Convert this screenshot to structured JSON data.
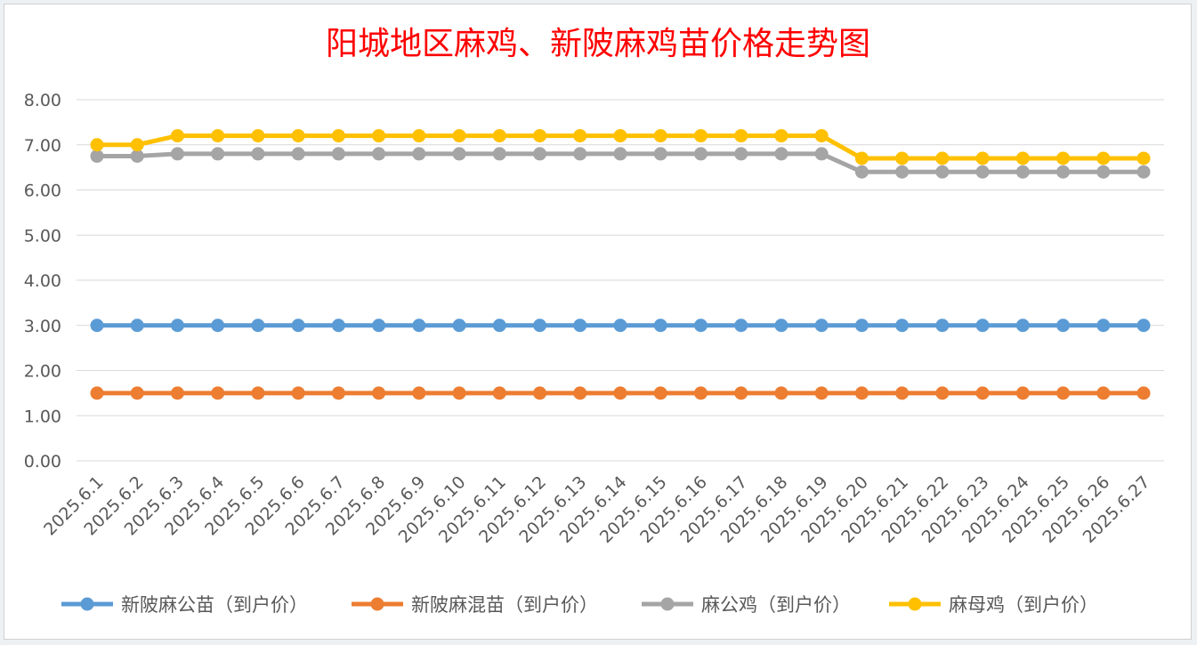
{
  "chart_data": {
    "type": "line",
    "title": "阳城地区麻鸡、新陂麻鸡苗价格走势图",
    "categories": [
      "2025.6.1",
      "2025.6.2",
      "2025.6.3",
      "2025.6.4",
      "2025.6.5",
      "2025.6.6",
      "2025.6.7",
      "2025.6.8",
      "2025.6.9",
      "2025.6.10",
      "2025.6.11",
      "2025.6.12",
      "2025.6.13",
      "2025.6.14",
      "2025.6.15",
      "2025.6.16",
      "2025.6.17",
      "2025.6.18",
      "2025.6.19",
      "2025.6.20",
      "2025.6.21",
      "2025.6.22",
      "2025.6.23",
      "2025.6.24",
      "2025.6.25",
      "2025.6.26",
      "2025.6.27"
    ],
    "ylim": [
      0,
      8
    ],
    "yticks": [
      "0.00",
      "1.00",
      "2.00",
      "3.00",
      "4.00",
      "5.00",
      "6.00",
      "7.00",
      "8.00"
    ],
    "grid": true,
    "legend": "bottom",
    "series": [
      {
        "name": "新陂麻公苗（到户价）",
        "color": "#5b9bd5",
        "values": [
          3.0,
          3.0,
          3.0,
          3.0,
          3.0,
          3.0,
          3.0,
          3.0,
          3.0,
          3.0,
          3.0,
          3.0,
          3.0,
          3.0,
          3.0,
          3.0,
          3.0,
          3.0,
          3.0,
          3.0,
          3.0,
          3.0,
          3.0,
          3.0,
          3.0,
          3.0,
          3.0
        ]
      },
      {
        "name": "新陂麻混苗（到户价）",
        "color": "#ed7d31",
        "values": [
          1.5,
          1.5,
          1.5,
          1.5,
          1.5,
          1.5,
          1.5,
          1.5,
          1.5,
          1.5,
          1.5,
          1.5,
          1.5,
          1.5,
          1.5,
          1.5,
          1.5,
          1.5,
          1.5,
          1.5,
          1.5,
          1.5,
          1.5,
          1.5,
          1.5,
          1.5,
          1.5
        ]
      },
      {
        "name": "麻公鸡（到户价）",
        "color": "#a5a5a5",
        "values": [
          6.75,
          6.75,
          6.8,
          6.8,
          6.8,
          6.8,
          6.8,
          6.8,
          6.8,
          6.8,
          6.8,
          6.8,
          6.8,
          6.8,
          6.8,
          6.8,
          6.8,
          6.8,
          6.8,
          6.4,
          6.4,
          6.4,
          6.4,
          6.4,
          6.4,
          6.4,
          6.4
        ]
      },
      {
        "name": "麻母鸡（到户价）",
        "color": "#ffc000",
        "values": [
          7.0,
          7.0,
          7.2,
          7.2,
          7.2,
          7.2,
          7.2,
          7.2,
          7.2,
          7.2,
          7.2,
          7.2,
          7.2,
          7.2,
          7.2,
          7.2,
          7.2,
          7.2,
          7.2,
          6.7,
          6.7,
          6.7,
          6.7,
          6.7,
          6.7,
          6.7,
          6.7
        ]
      }
    ]
  }
}
